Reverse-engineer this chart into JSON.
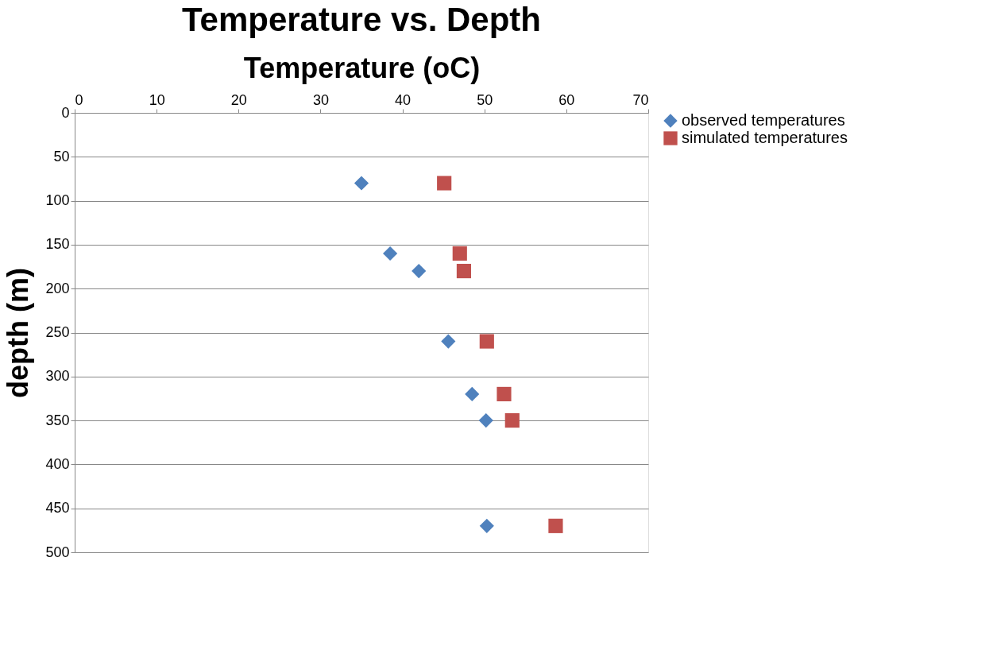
{
  "chart_data": {
    "type": "scatter",
    "title": "Temperature vs. Depth",
    "xlabel": "Temperature (oC)",
    "ylabel": "depth (m)",
    "xlim": [
      0,
      70
    ],
    "xticks": [
      0,
      10,
      20,
      30,
      40,
      50,
      60,
      70
    ],
    "ylim": [
      500,
      0
    ],
    "yticks": [
      0,
      50,
      100,
      150,
      200,
      250,
      300,
      350,
      400,
      450,
      500
    ],
    "grid": "y",
    "legend": "right",
    "series": [
      {
        "name": "observed temperatures",
        "color": "#4f81bd",
        "marker": "diamond",
        "x": [
          35,
          38.5,
          42,
          45.6,
          48.5,
          50.2,
          50.3
        ],
        "values": [
          80,
          160,
          180,
          260,
          320,
          350,
          470
        ]
      },
      {
        "name": "simulated temperatures",
        "color": "#c0504d",
        "marker": "square",
        "x": [
          45.1,
          47,
          47.5,
          50.3,
          52.4,
          53.4,
          58.7
        ],
        "values": [
          80,
          160,
          180,
          260,
          320,
          350,
          470
        ]
      }
    ]
  }
}
